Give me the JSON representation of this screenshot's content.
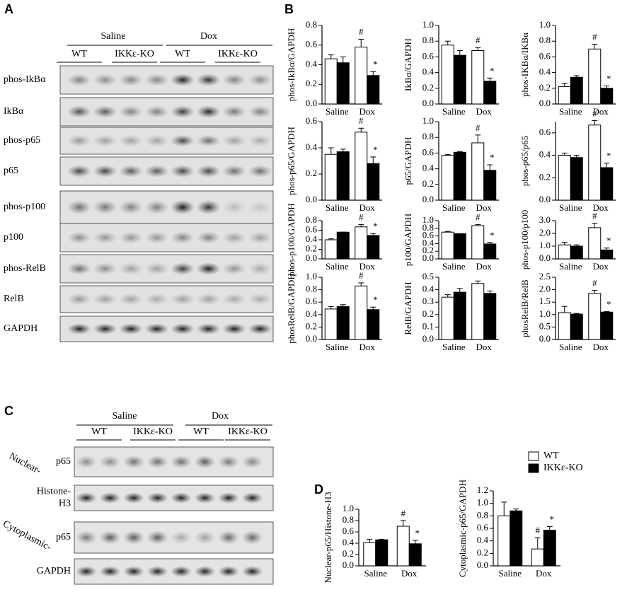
{
  "panel_labels": [
    "A",
    "B",
    "C",
    "D"
  ],
  "blot_a": {
    "groups": [
      "Saline",
      "Dox"
    ],
    "genotypes": [
      "WT",
      "IKKε-KO",
      "WT",
      "IKKε-KO"
    ],
    "rows": [
      "phos-IkBα",
      "IkBα",
      "phos-p65",
      "p65",
      "phos-p100",
      "p100",
      "phos-RelB",
      "RelB",
      "GAPDH"
    ]
  },
  "blot_c": {
    "groups": [
      "Saline",
      "Dox"
    ],
    "genotypes": [
      "WT",
      "IKKε-KO",
      "WT",
      "IKKε-KO"
    ],
    "side_labels": [
      "Nuclear-",
      "Cytoplasmic-"
    ],
    "rows": [
      [
        "p65"
      ],
      [
        "Histone-",
        "H3"
      ],
      [
        "p65"
      ],
      [
        "GAPDH"
      ]
    ]
  },
  "legend": {
    "series": [
      {
        "name": "WT",
        "color": "#ffffff"
      },
      {
        "name": "IKKε-KO",
        "color": "#000000"
      }
    ]
  },
  "chart_data": [
    {
      "type": "bar",
      "ylabel": "phos-IkBα/GAPDH",
      "categories": [
        "Saline",
        "Dox"
      ],
      "ylim": [
        0,
        0.8
      ],
      "yticks": [
        {
          "value": 0,
          "label": "0.0"
        },
        0.2,
        0.4,
        0.6,
        0.8
      ],
      "series": [
        {
          "color": "#ffffff",
          "values": [
            0.46,
            0.58
          ],
          "errors": [
            0.04,
            0.08
          ],
          "significance": [
            null,
            "#"
          ]
        },
        {
          "color": "#000000",
          "values": [
            0.42,
            0.29
          ],
          "errors": [
            0.06,
            0.04
          ],
          "significance": [
            null,
            "*"
          ]
        }
      ]
    },
    {
      "type": "bar",
      "ylabel": "IkBα/GAPDH",
      "categories": [
        "Saline",
        "Dox"
      ],
      "ylim": [
        0,
        1
      ],
      "yticks": [
        {
          "value": 0,
          "label": "0.0"
        },
        0.2,
        0.4,
        0.6,
        0.8,
        {
          "value": 1,
          "label": "1.0"
        }
      ],
      "series": [
        {
          "color": "#ffffff",
          "values": [
            0.75,
            0.68
          ],
          "errors": [
            0.05,
            0.04
          ],
          "significance": [
            null,
            "#"
          ]
        },
        {
          "color": "#000000",
          "values": [
            0.62,
            0.29
          ],
          "errors": [
            0.06,
            0.04
          ],
          "significance": [
            null,
            "*"
          ]
        }
      ]
    },
    {
      "type": "bar",
      "ylabel": "phos-IKBα/IKBα",
      "categories": [
        "Saline",
        "Dox"
      ],
      "ylim": [
        0,
        1
      ],
      "yticks": [
        {
          "value": 0,
          "label": "0.0"
        },
        0.2,
        0.4,
        0.6,
        0.8,
        {
          "value": 1,
          "label": "1.0"
        }
      ],
      "series": [
        {
          "color": "#ffffff",
          "values": [
            0.22,
            0.7
          ],
          "errors": [
            0.04,
            0.06
          ],
          "significance": [
            null,
            "#"
          ]
        },
        {
          "color": "#000000",
          "values": [
            0.34,
            0.2
          ],
          "errors": [
            0.02,
            0.03
          ],
          "significance": [
            null,
            "*"
          ]
        }
      ]
    },
    {
      "type": "bar",
      "ylabel": "phos-p65/GAPDH",
      "categories": [
        "Saline",
        "Dox"
      ],
      "ylim": [
        0,
        0.6
      ],
      "yticks": [
        {
          "value": 0,
          "label": "0.0"
        },
        0.2,
        0.4,
        0.6
      ],
      "series": [
        {
          "color": "#ffffff",
          "values": [
            0.35,
            0.52
          ],
          "errors": [
            0.05,
            0.03
          ],
          "significance": [
            null,
            "#"
          ]
        },
        {
          "color": "#000000",
          "values": [
            0.37,
            0.28
          ],
          "errors": [
            0.02,
            0.05
          ],
          "significance": [
            null,
            "*"
          ]
        }
      ]
    },
    {
      "type": "bar",
      "ylabel": "p65/GAPDH",
      "categories": [
        "Saline",
        "Dox"
      ],
      "ylim": [
        0,
        1
      ],
      "yticks": [
        {
          "value": 0,
          "label": "0.0"
        },
        0.2,
        0.4,
        0.6,
        0.8,
        {
          "value": 1,
          "label": "1.0"
        }
      ],
      "series": [
        {
          "color": "#ffffff",
          "values": [
            0.57,
            0.73
          ],
          "errors": [
            0.01,
            0.1
          ],
          "significance": [
            null,
            "#"
          ]
        },
        {
          "color": "#000000",
          "values": [
            0.61,
            0.38
          ],
          "errors": [
            0.01,
            0.07
          ],
          "significance": [
            null,
            "*"
          ]
        }
      ]
    },
    {
      "type": "bar",
      "ylabel": "phos-p65/p65",
      "categories": [
        "Saline",
        "Dox"
      ],
      "ylim": [
        0,
        0.7
      ],
      "yticks": [
        {
          "value": 0,
          "label": "0.0"
        },
        0.2,
        0.4,
        0.6
      ],
      "series": [
        {
          "color": "#ffffff",
          "values": [
            0.4,
            0.67
          ],
          "errors": [
            0.02,
            0.04
          ],
          "significance": [
            null,
            "#"
          ]
        },
        {
          "color": "#000000",
          "values": [
            0.38,
            0.29
          ],
          "errors": [
            0.02,
            0.04
          ],
          "significance": [
            null,
            "*"
          ]
        }
      ]
    },
    {
      "type": "bar",
      "ylabel": "phos-p100/GAPDH",
      "categories": [
        "Saline",
        "Dox"
      ],
      "ylim": [
        0,
        0.8
      ],
      "yticks": [
        {
          "value": 0,
          "label": "0.0"
        },
        0.2,
        0.4,
        0.6,
        0.8
      ],
      "series": [
        {
          "color": "#ffffff",
          "values": [
            0.4,
            0.67
          ],
          "errors": [
            0.02,
            0.05
          ],
          "significance": [
            null,
            "#"
          ]
        },
        {
          "color": "#000000",
          "values": [
            0.56,
            0.49
          ],
          "errors": [
            0,
            0.04
          ],
          "significance": [
            null,
            "*"
          ]
        }
      ]
    },
    {
      "type": "bar",
      "ylabel": "p100/GAPDH",
      "categories": [
        "Saline",
        "Dox"
      ],
      "ylim": [
        0,
        1
      ],
      "yticks": [
        {
          "value": 0,
          "label": "0.0"
        },
        0.2,
        0.4,
        0.6,
        0.8,
        {
          "value": 1,
          "label": "1.0"
        }
      ],
      "series": [
        {
          "color": "#ffffff",
          "values": [
            0.7,
            0.87
          ],
          "errors": [
            0.02,
            0.03
          ],
          "significance": [
            null,
            "#"
          ]
        },
        {
          "color": "#000000",
          "values": [
            0.66,
            0.39
          ],
          "errors": [
            0,
            0.04
          ],
          "significance": [
            null,
            "*"
          ]
        }
      ]
    },
    {
      "type": "bar",
      "ylabel": "phos-p100/p100",
      "categories": [
        "Saline",
        "Dox"
      ],
      "ylim": [
        0,
        3
      ],
      "yticks": [
        {
          "value": 0,
          "label": "0.0"
        },
        {
          "value": 1,
          "label": "1.0"
        },
        {
          "value": 2,
          "label": "2.0"
        },
        {
          "value": 3,
          "label": "3.0"
        }
      ],
      "series": [
        {
          "color": "#ffffff",
          "values": [
            1.1,
            2.45
          ],
          "errors": [
            0.2,
            0.35
          ],
          "significance": [
            null,
            "#"
          ]
        },
        {
          "color": "#000000",
          "values": [
            1,
            0.7
          ],
          "errors": [
            0.1,
            0.15
          ],
          "significance": [
            null,
            "*"
          ]
        }
      ]
    },
    {
      "type": "bar",
      "ylabel": "phosRelB/GAPDH",
      "categories": [
        "Saline",
        "Dox"
      ],
      "ylim": [
        0,
        1
      ],
      "yticks": [
        {
          "value": 0,
          "label": "0.0"
        },
        0.2,
        0.4,
        0.6,
        0.8,
        {
          "value": 1,
          "label": "1.0"
        }
      ],
      "series": [
        {
          "color": "#ffffff",
          "values": [
            0.49,
            0.86
          ],
          "errors": [
            0.04,
            0.05
          ],
          "significance": [
            null,
            "#"
          ]
        },
        {
          "color": "#000000",
          "values": [
            0.53,
            0.48
          ],
          "errors": [
            0.03,
            0.04
          ],
          "significance": [
            null,
            "*"
          ]
        }
      ]
    },
    {
      "type": "bar",
      "ylabel": "RelB/GAPDH",
      "categories": [
        "Saline",
        "Dox"
      ],
      "ylim": [
        0,
        0.5
      ],
      "yticks": [
        {
          "value": 0,
          "label": "0.0"
        },
        0.1,
        0.2,
        0.3,
        0.4,
        0.5
      ],
      "series": [
        {
          "color": "#ffffff",
          "values": [
            0.34,
            0.45
          ],
          "errors": [
            0.02,
            0.02
          ]
        },
        {
          "color": "#000000",
          "values": [
            0.38,
            0.37
          ],
          "errors": [
            0.03,
            0.02
          ]
        }
      ]
    },
    {
      "type": "bar",
      "ylabel": "phosRelB/RelB",
      "categories": [
        "Saline",
        "Dox"
      ],
      "ylim": [
        0,
        2.5
      ],
      "yticks": [
        {
          "value": 0,
          "label": "0.0"
        },
        0.5,
        {
          "value": 1,
          "label": "1.0"
        },
        1.5,
        {
          "value": 2,
          "label": "2.0"
        },
        2.5
      ],
      "series": [
        {
          "color": "#ffffff",
          "values": [
            1.08,
            1.85
          ],
          "errors": [
            0.25,
            0.12
          ],
          "significance": [
            null,
            "#"
          ]
        },
        {
          "color": "#000000",
          "values": [
            1.02,
            1.1
          ],
          "errors": [
            0.03,
            0.02
          ],
          "significance": [
            null,
            "*"
          ]
        }
      ]
    },
    {
      "type": "bar",
      "ylabel": "Nuclear-p65/Histone-H3",
      "categories": [
        "Saline",
        "Dox"
      ],
      "ylim": [
        0,
        1
      ],
      "yticks": [
        {
          "value": 0,
          "label": "0.0"
        },
        0.2,
        0.4,
        0.6,
        0.8,
        {
          "value": 1,
          "label": "1.0"
        }
      ],
      "series": [
        {
          "color": "#ffffff",
          "values": [
            0.41,
            0.7
          ],
          "errors": [
            0.06,
            0.1
          ],
          "significance": [
            null,
            "#"
          ]
        },
        {
          "color": "#000000",
          "values": [
            0.46,
            0.39
          ],
          "errors": [
            0.01,
            0.06
          ],
          "significance": [
            null,
            "*"
          ]
        }
      ]
    },
    {
      "type": "bar",
      "ylabel": "Cytoplasmic-p65/GAPDH",
      "categories": [
        "Saline",
        "Dox"
      ],
      "ylim": [
        0,
        1.2
      ],
      "yticks": [
        {
          "value": 0,
          "label": "0.0"
        },
        0.2,
        0.4,
        0.6,
        0.8,
        {
          "value": 1,
          "label": "1.0"
        },
        1.2
      ],
      "series": [
        {
          "color": "#ffffff",
          "values": [
            0.8,
            0.27
          ],
          "errors": [
            0.22,
            0.18
          ],
          "significance": [
            null,
            "#"
          ]
        },
        {
          "color": "#000000",
          "values": [
            0.88,
            0.57
          ],
          "errors": [
            0.03,
            0.06
          ],
          "significance": [
            null,
            "*"
          ]
        }
      ]
    }
  ]
}
